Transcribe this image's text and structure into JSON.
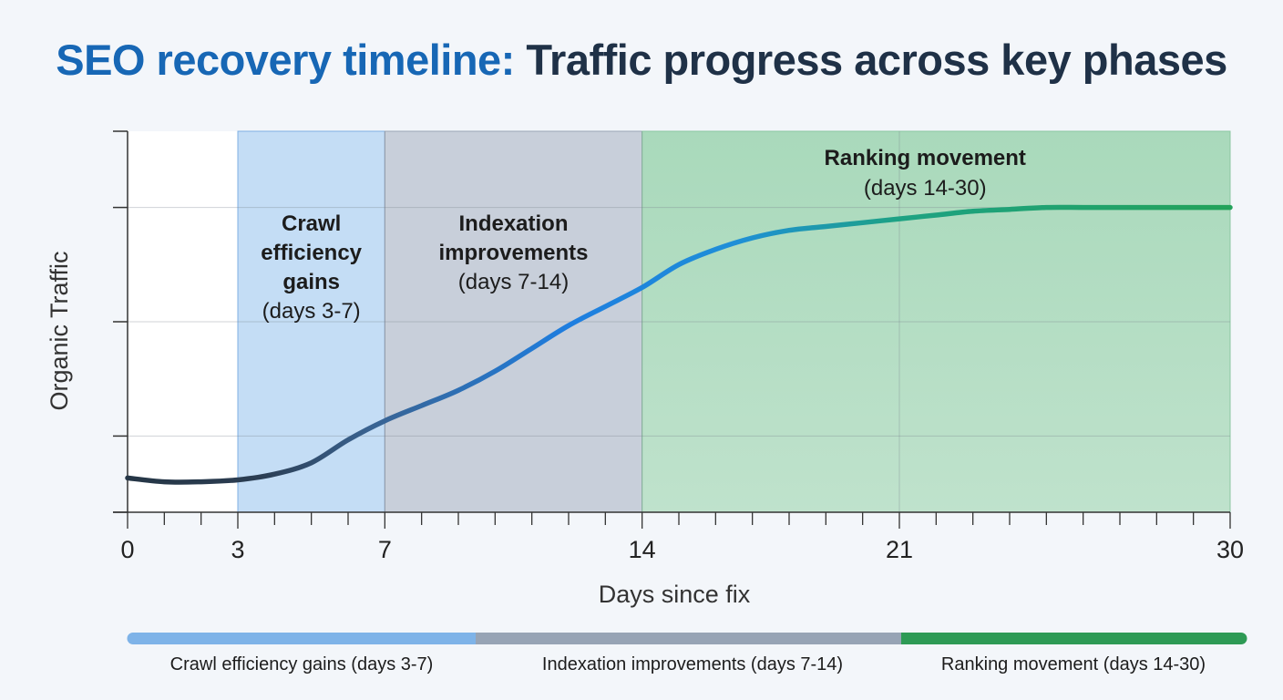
{
  "title": {
    "part1": "SEO recovery timeline:",
    "part2": "Traffic progress across key phases"
  },
  "colors": {
    "title_accent": "#1767b5",
    "title_dark": "#1f3147",
    "crawl": "#7eb3e8",
    "indexation": "#97a4b5",
    "ranking": "#2e9a55"
  },
  "chart_data": {
    "type": "line",
    "xlabel": "Days since fix",
    "ylabel": "Organic Traffic",
    "xlim": [
      0,
      30
    ],
    "ylim": [
      0,
      100
    ],
    "x_ticks": [
      0,
      3,
      7,
      14,
      21,
      30
    ],
    "grid": true,
    "series": [
      {
        "x": [
          0,
          1,
          2,
          3,
          4,
          5,
          6,
          7,
          8,
          9,
          10,
          11,
          12,
          13,
          14,
          15,
          16,
          17,
          18,
          19,
          20,
          21,
          22,
          23,
          24,
          25,
          26,
          27,
          28,
          29,
          30
        ],
        "y": [
          9,
          8,
          8,
          8.5,
          10,
          13,
          19,
          24,
          28,
          32,
          37,
          43,
          49,
          54,
          59,
          65,
          69,
          72,
          74,
          75,
          76,
          77,
          78,
          79,
          79.5,
          80,
          80,
          80,
          80,
          80,
          80
        ]
      }
    ],
    "phases": [
      {
        "id": "crawl",
        "label_lines": [
          "Crawl",
          "efficiency",
          "gains",
          "(days 3-7)"
        ],
        "start": 3,
        "end": 7
      },
      {
        "id": "indexation",
        "label_lines": [
          "Indexation",
          "improvements",
          "(days 7-14)"
        ],
        "start": 7,
        "end": 14
      },
      {
        "id": "ranking",
        "label_lines": [
          "Ranking movement",
          "(days 14-30)"
        ],
        "start": 14,
        "end": 30
      }
    ],
    "legend": {
      "placement": "bottom",
      "entries": [
        "Crawl efficiency gains (days 3-7)",
        "Indexation improvements (days 7-14)",
        "Ranking movement (days 14-30)"
      ]
    }
  }
}
